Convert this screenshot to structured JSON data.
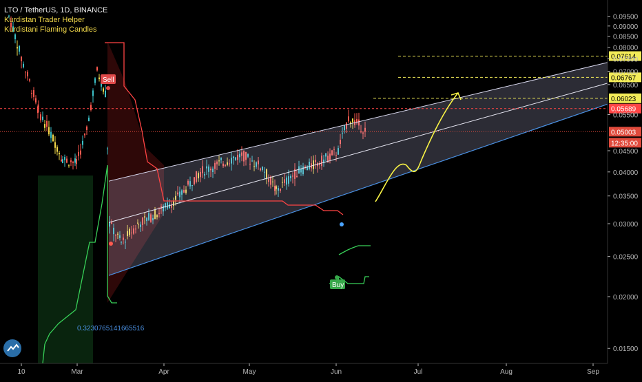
{
  "header": {
    "title": "LTO / TetherUS, 1D, BINANCE",
    "indicators": [
      "Kurdistan Trader Helper",
      "Kurdistani Flaming Candles"
    ]
  },
  "colors": {
    "background": "#000000",
    "axis_text": "#b8b8b8",
    "bull_candle": "#3cc1c8",
    "bear_candle": "#ff5a4f",
    "flame_candle": "#f0d74a",
    "resistance_line": "#ff4444",
    "support_line": "#38d058",
    "channel_fill": "#c8c8f0",
    "channel_lower": "#4a90e2",
    "projection": "#f7f245",
    "target_level": "#f2eb58",
    "current_price": "#e04a3c",
    "buy_badge": "#37a84a",
    "sell_badge": "#e04a4a"
  },
  "chart_data": {
    "type": "candlestick",
    "x_axis": {
      "tick_labels": [
        "10",
        "Mar",
        "Apr",
        "May",
        "Jun",
        "Jul",
        "Aug",
        "Sep"
      ]
    },
    "y_axis": {
      "scale": "log",
      "range": [
        0.0138,
        0.104
      ],
      "tick_labels": [
        "0.09500",
        "0.09000",
        "0.08500",
        "0.08000",
        "0.07500",
        "0.07000",
        "0.06500",
        "0.05500",
        "0.04500",
        "0.04000",
        "0.03500",
        "0.03000",
        "0.02500",
        "0.02000",
        "0.01500"
      ],
      "tick_values": [
        0.095,
        0.09,
        0.085,
        0.08,
        0.075,
        0.07,
        0.065,
        0.055,
        0.045,
        0.04,
        0.035,
        0.03,
        0.025,
        0.02,
        0.015
      ]
    },
    "price_levels": [
      {
        "label": "0.07614",
        "value": 0.07614,
        "style": "dashed-target"
      },
      {
        "label": "0.06767",
        "value": 0.06767,
        "style": "dashed-target"
      },
      {
        "label": "0.06023",
        "value": 0.06023,
        "style": "dashed-target"
      },
      {
        "label": "0.05689",
        "value": 0.05689,
        "style": "resistance"
      },
      {
        "label": "0.05003",
        "value": 0.05003,
        "style": "current-price"
      }
    ],
    "countdown": "12:35:00",
    "channel": {
      "upper_start": 0.038,
      "upper_end": 0.0735,
      "middle_start": 0.0302,
      "middle_end": 0.0655,
      "lower_start": 0.0225,
      "lower_end": 0.0583
    },
    "channel_label": "0.3230765141665516",
    "signals": [
      {
        "label": "Sell",
        "type": "sell",
        "price": 0.078
      },
      {
        "label": "Buy",
        "type": "buy",
        "price": 0.0335
      }
    ]
  }
}
